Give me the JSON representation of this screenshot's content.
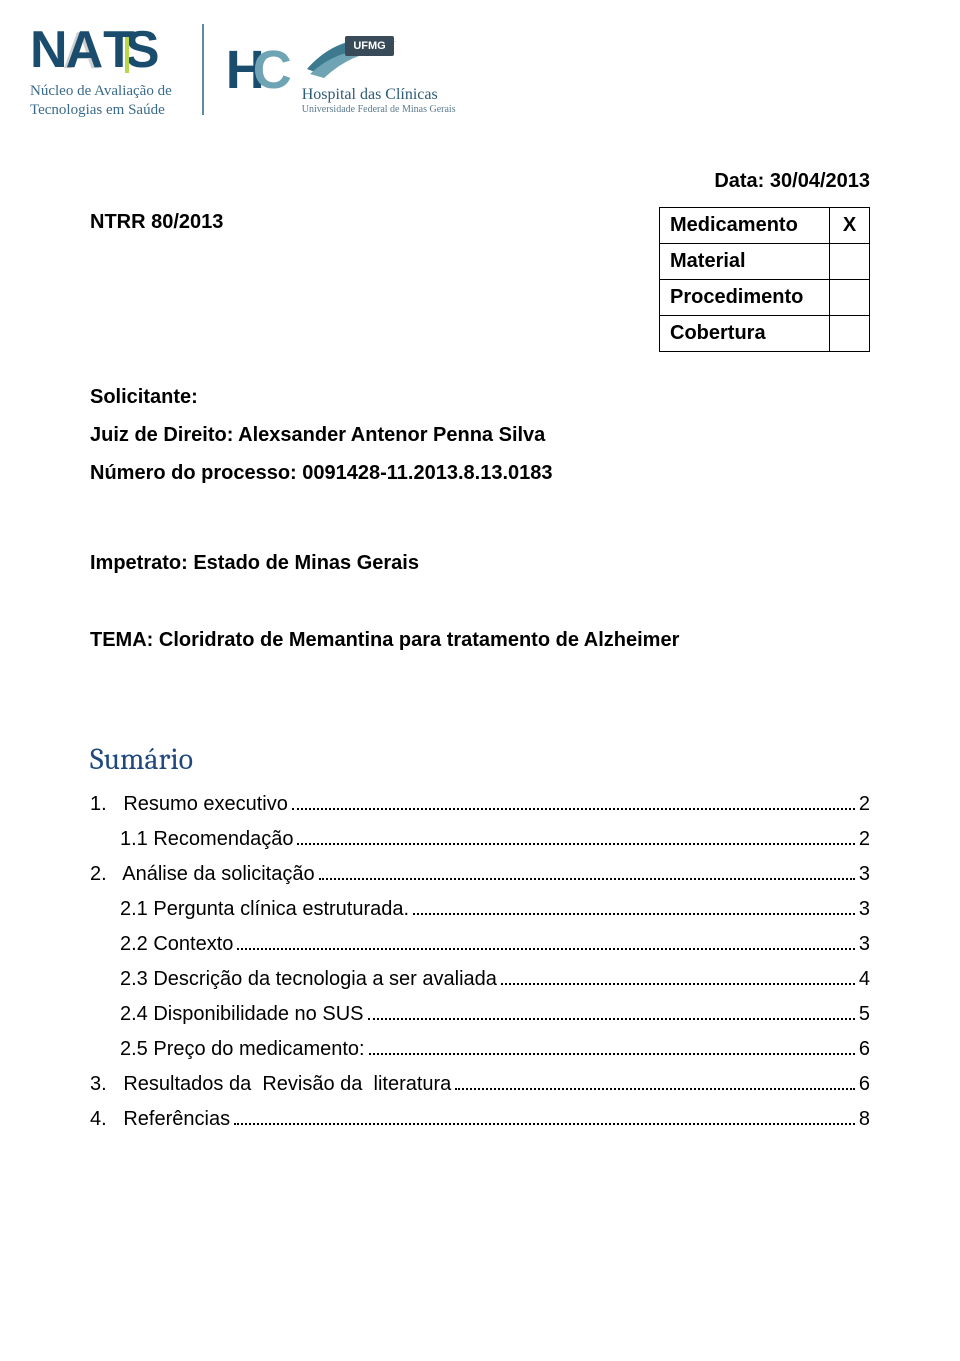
{
  "logo": {
    "nats_sub1": "Núcleo de Avaliação de",
    "nats_sub2": "Tecnologias em Saúde",
    "ufmg": "UFMG",
    "hc1": "Hospital das Clínicas",
    "hc2": "Universidade Federal de Minas Gerais"
  },
  "date_label": "Data: 30/04/2013",
  "ntrr": "NTRR 80/2013",
  "med_table": {
    "rows": [
      {
        "label": "Medicamento",
        "mark": "X"
      },
      {
        "label": "Material",
        "mark": ""
      },
      {
        "label": "Procedimento",
        "mark": ""
      },
      {
        "label": "Cobertura",
        "mark": ""
      }
    ]
  },
  "solicitante_label": "Solicitante:",
  "juiz": "Juiz de Direito: Alexsander Antenor Penna Silva",
  "processo": "Número do processo: 0091428-11.2013.8.13.0183",
  "impetrato": "Impetrato: Estado de Minas Gerais",
  "tema": "TEMA: Cloridrato de Memantina para tratamento de Alzheimer",
  "sumario_title": "Sumário",
  "toc": [
    {
      "label": "1.   Resumo executivo",
      "page": "2",
      "indent": false
    },
    {
      "label": "1.1 Recomendação",
      "page": "2",
      "indent": true
    },
    {
      "label": "2.   Análise da solicitação",
      "page": "3",
      "indent": false
    },
    {
      "label": "2.1 Pergunta clínica estruturada.",
      "page": "3",
      "indent": true
    },
    {
      "label": "2.2 Contexto",
      "page": "3",
      "indent": true
    },
    {
      "label": "2.3 Descrição da tecnologia a ser avaliada",
      "page": "4",
      "indent": true
    },
    {
      "label": "2.4 Disponibilidade no SUS",
      "page": "5",
      "indent": true
    },
    {
      "label": "2.5 Preço do medicamento:",
      "page": "6",
      "indent": true
    },
    {
      "label": "3.   Resultados da  Revisão da  literatura",
      "page": "6",
      "indent": false
    },
    {
      "label": "4.   Referências",
      "page": "8",
      "indent": false
    }
  ],
  "colors": {
    "teal_dark": "#1a4d6d",
    "teal_light": "#6ea4b3",
    "accent_green": "#b6d84a",
    "sumario": "#1f497d",
    "text": "#000000",
    "bg": "#ffffff"
  }
}
